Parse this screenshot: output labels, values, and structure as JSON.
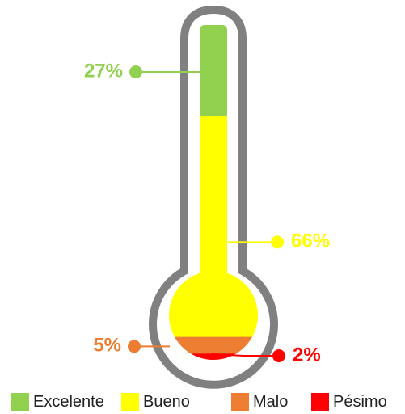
{
  "chart_data": {
    "type": "thermometer",
    "categories": [
      "Excelente",
      "Bueno",
      "Malo",
      "Pésimo"
    ],
    "values": [
      27,
      66,
      5,
      2
    ],
    "value_labels": [
      "27%",
      "66%",
      "5%",
      "2%"
    ],
    "colors": [
      "#92d050",
      "#ffff00",
      "#ed7d31",
      "#ff0000"
    ],
    "label_colors": [
      "#92d050",
      "#ffff00",
      "#ed7d31",
      "#ff0000"
    ],
    "outline_color": "#808080",
    "legend_position": "bottom"
  }
}
